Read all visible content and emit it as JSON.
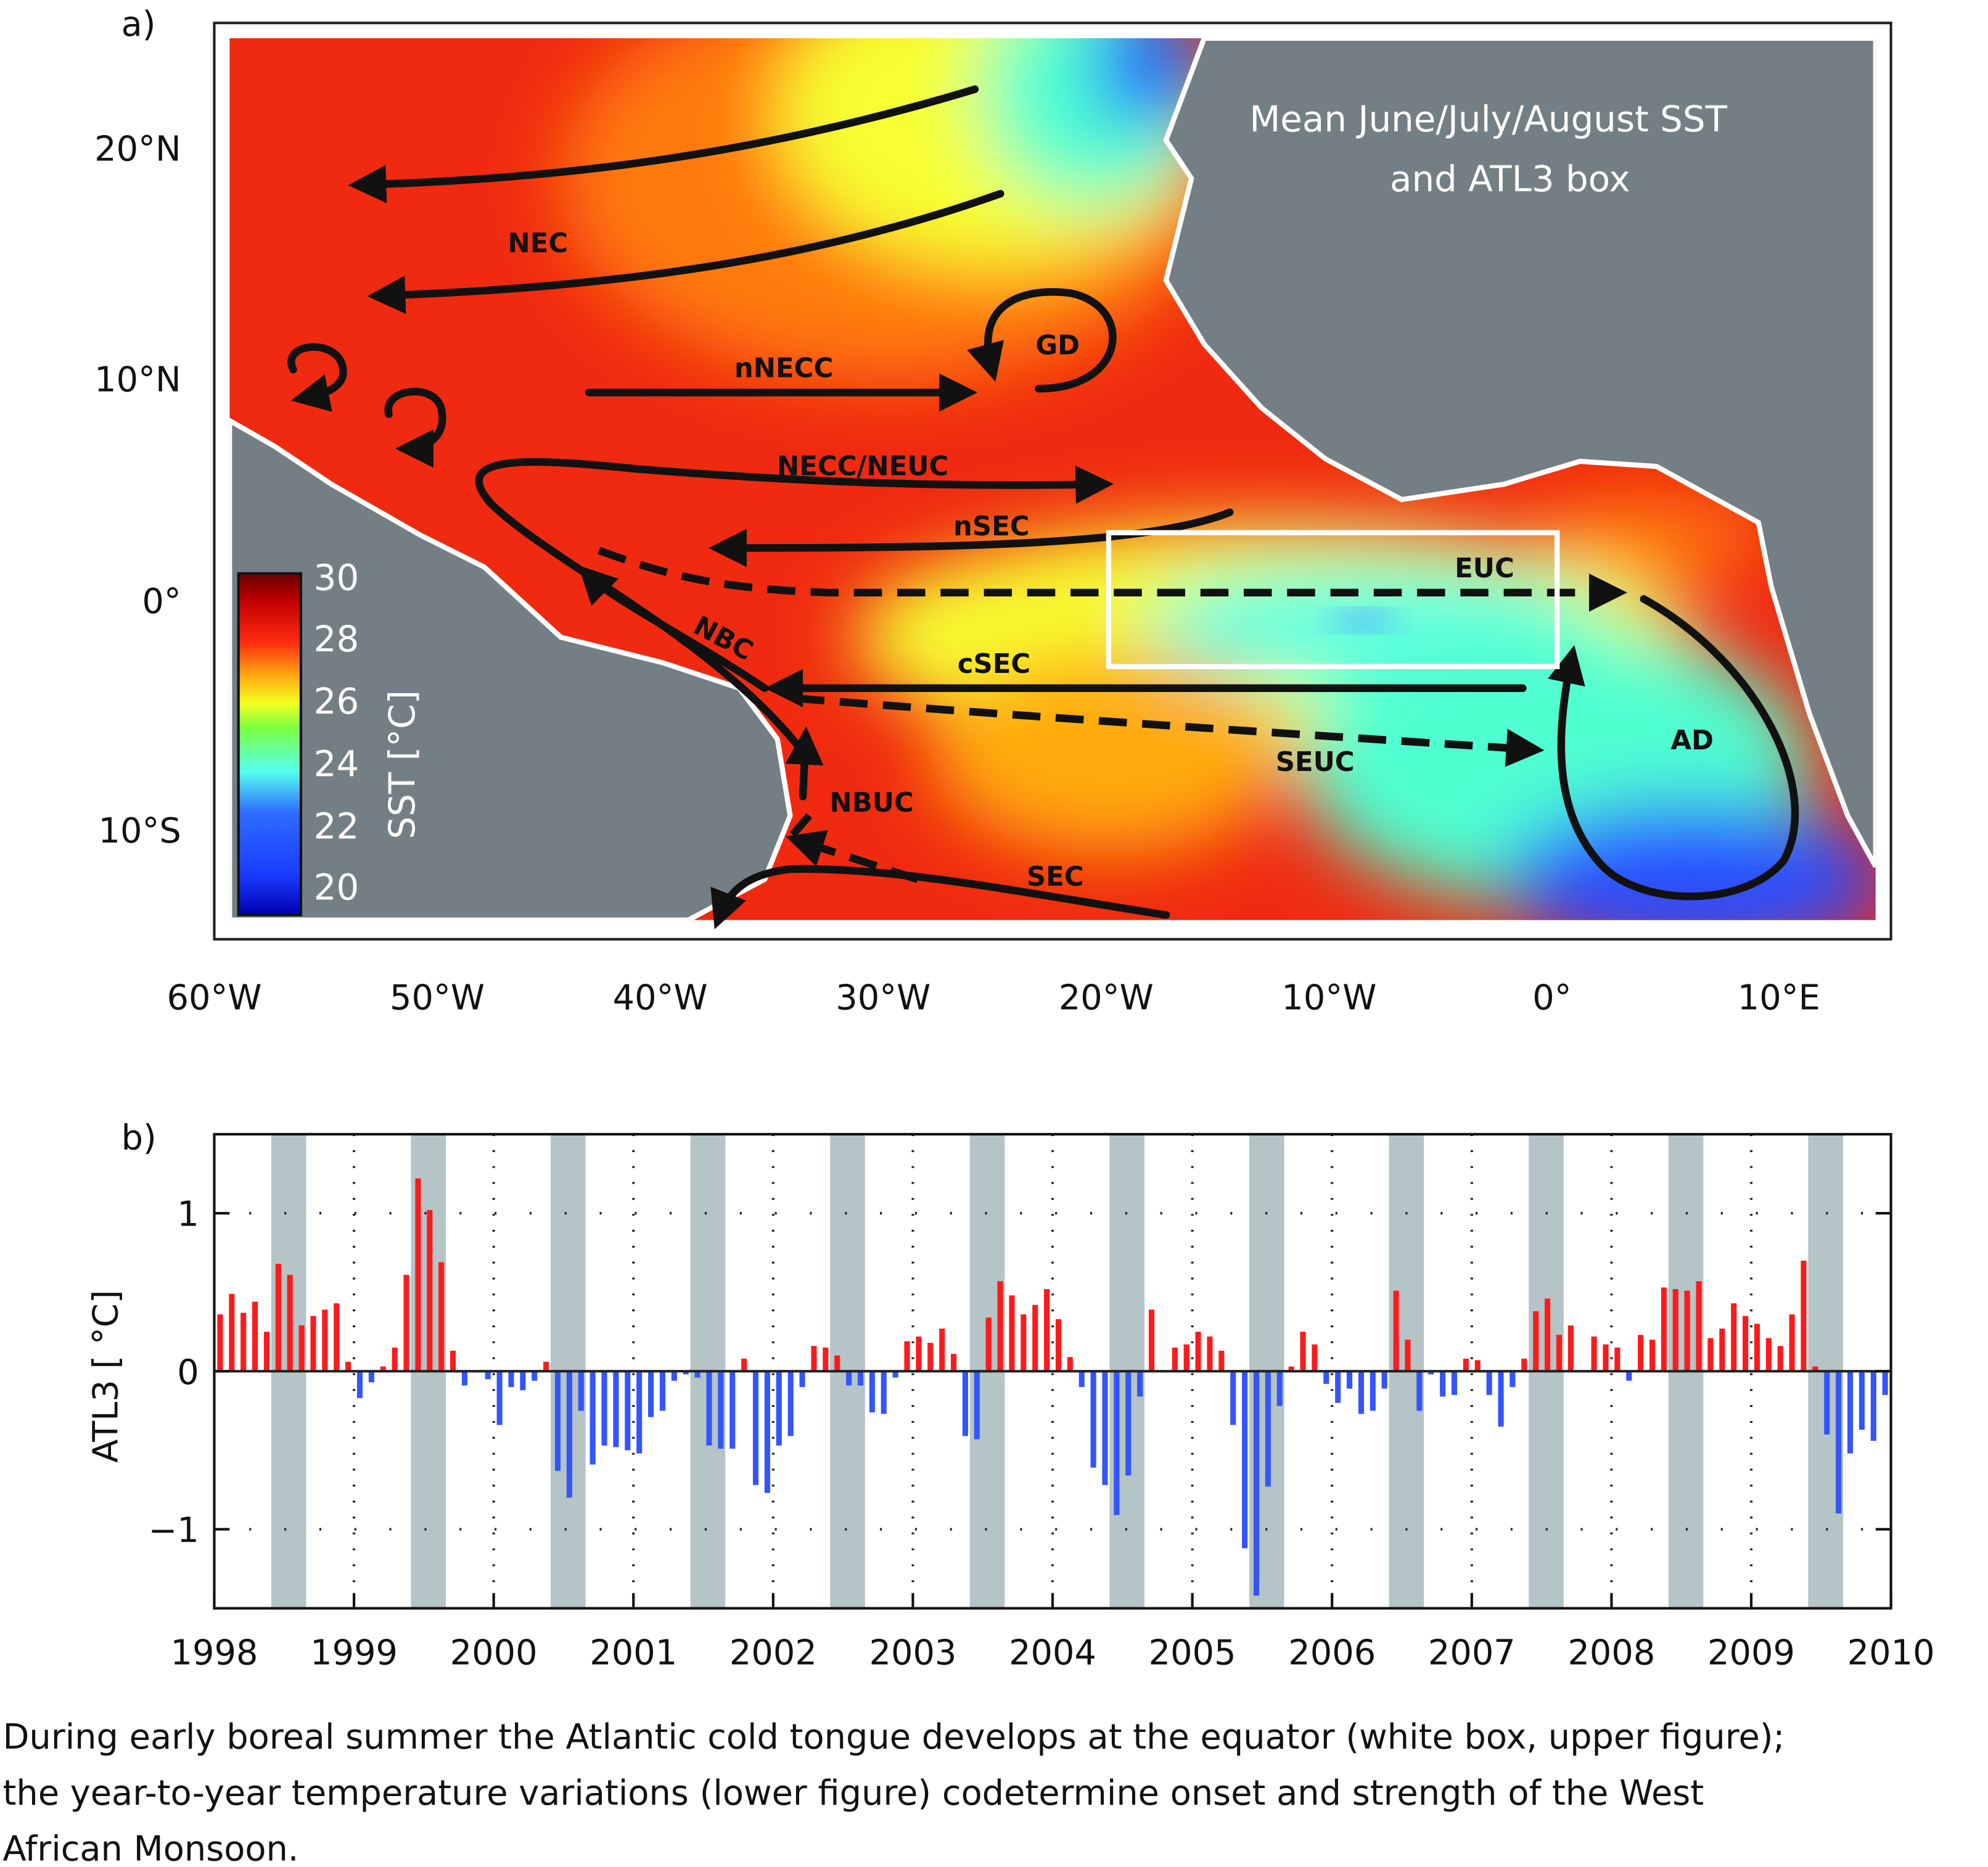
{
  "panel_a": {
    "label": "a)",
    "title_line1": "Mean June/July/August SST",
    "title_line2": "and ATL3 box",
    "lat_ticks": [
      "20°N",
      "10°N",
      "0°",
      "10°S"
    ],
    "lon_ticks": [
      "60°W",
      "50°W",
      "40°W",
      "30°W",
      "20°W",
      "10°W",
      "0°",
      "10°E"
    ],
    "colorbar": {
      "label": "SST [°C]",
      "ticks": [
        "30",
        "28",
        "26",
        "24",
        "22",
        "20"
      ],
      "range": [
        20,
        30
      ]
    },
    "currents": {
      "nec": "NEC",
      "nnecc": "nNECC",
      "gd": "GD",
      "necc": "NECC/NEUC",
      "nsec": "nSEC",
      "euc": "EUC",
      "nbc": "NBC",
      "csec": "cSEC",
      "seuc": "SEUC",
      "ad": "AD",
      "nbuc": "NBUC",
      "sec": "SEC"
    },
    "atl3_box": {
      "lon": [
        -20,
        0
      ],
      "lat": [
        -3,
        3
      ]
    },
    "colors": {
      "land": "#737f84",
      "warm": "#f02a10",
      "box": "#ffffff"
    }
  },
  "chart_data": {
    "type": "bar",
    "label": "b)",
    "ylabel": "ATL3 [ °C]",
    "xlabel": "",
    "ylim": [
      -1.5,
      1.5
    ],
    "yticks": [
      "1",
      "0",
      "−1"
    ],
    "ytick_values": [
      1,
      0,
      -1
    ],
    "xticks": [
      "1998",
      "1999",
      "2000",
      "2001",
      "2002",
      "2003",
      "2004",
      "2005",
      "2006",
      "2007",
      "2008",
      "2009",
      "2010"
    ],
    "grid": true,
    "shaded_months": "June–August of each year",
    "start": "1998-01",
    "frequency": "monthly",
    "positive_color": "#ff1a1a",
    "negative_color": "#3355ff",
    "shade_color": "#b5c4c7",
    "values": [
      0.36,
      0.49,
      0.37,
      0.44,
      0.25,
      0.68,
      0.61,
      0.29,
      0.35,
      0.39,
      0.43,
      0.06,
      -0.17,
      -0.07,
      0.03,
      0.15,
      0.61,
      1.22,
      1.02,
      0.69,
      0.13,
      -0.09,
      0.0,
      -0.05,
      -0.34,
      -0.1,
      -0.12,
      -0.06,
      0.06,
      -0.63,
      -0.8,
      -0.25,
      -0.59,
      -0.47,
      -0.48,
      -0.5,
      -0.52,
      -0.29,
      -0.25,
      -0.06,
      -0.02,
      -0.04,
      -0.47,
      -0.49,
      -0.49,
      0.08,
      -0.72,
      -0.77,
      -0.47,
      -0.41,
      -0.1,
      0.16,
      0.15,
      0.1,
      -0.09,
      -0.09,
      -0.26,
      -0.27,
      -0.04,
      0.19,
      0.22,
      0.18,
      0.27,
      0.11,
      -0.41,
      -0.43,
      0.34,
      0.57,
      0.48,
      0.36,
      0.42,
      0.52,
      0.33,
      0.09,
      -0.1,
      -0.61,
      -0.72,
      -0.91,
      -0.66,
      -0.16,
      0.39,
      0.0,
      0.15,
      0.17,
      0.25,
      0.22,
      0.13,
      -0.34,
      -1.12,
      -1.42,
      -0.73,
      -0.22,
      0.03,
      0.25,
      0.17,
      -0.08,
      -0.2,
      -0.11,
      -0.27,
      -0.25,
      -0.11,
      0.51,
      0.2,
      -0.25,
      -0.02,
      -0.16,
      -0.15,
      0.08,
      0.07,
      -0.15,
      -0.35,
      -0.1,
      0.08,
      0.38,
      0.46,
      0.23,
      0.29,
      0.0,
      0.22,
      0.17,
      0.15,
      -0.06,
      0.23,
      0.2,
      0.53,
      0.52,
      0.51,
      0.57,
      0.21,
      0.27,
      0.43,
      0.35,
      0.3,
      0.21,
      0.16,
      0.36,
      0.7,
      0.03,
      -0.4,
      -0.9,
      -0.52,
      -0.37,
      -0.44,
      -0.15
    ]
  },
  "caption": {
    "line1": "During early boreal summer the Atlantic cold tongue develops at the equator (white box, upper figure);",
    "line2": "the year-to-year temperature variations (lower figure) codetermine onset and strength of the West",
    "line3": "African Monsoon."
  }
}
